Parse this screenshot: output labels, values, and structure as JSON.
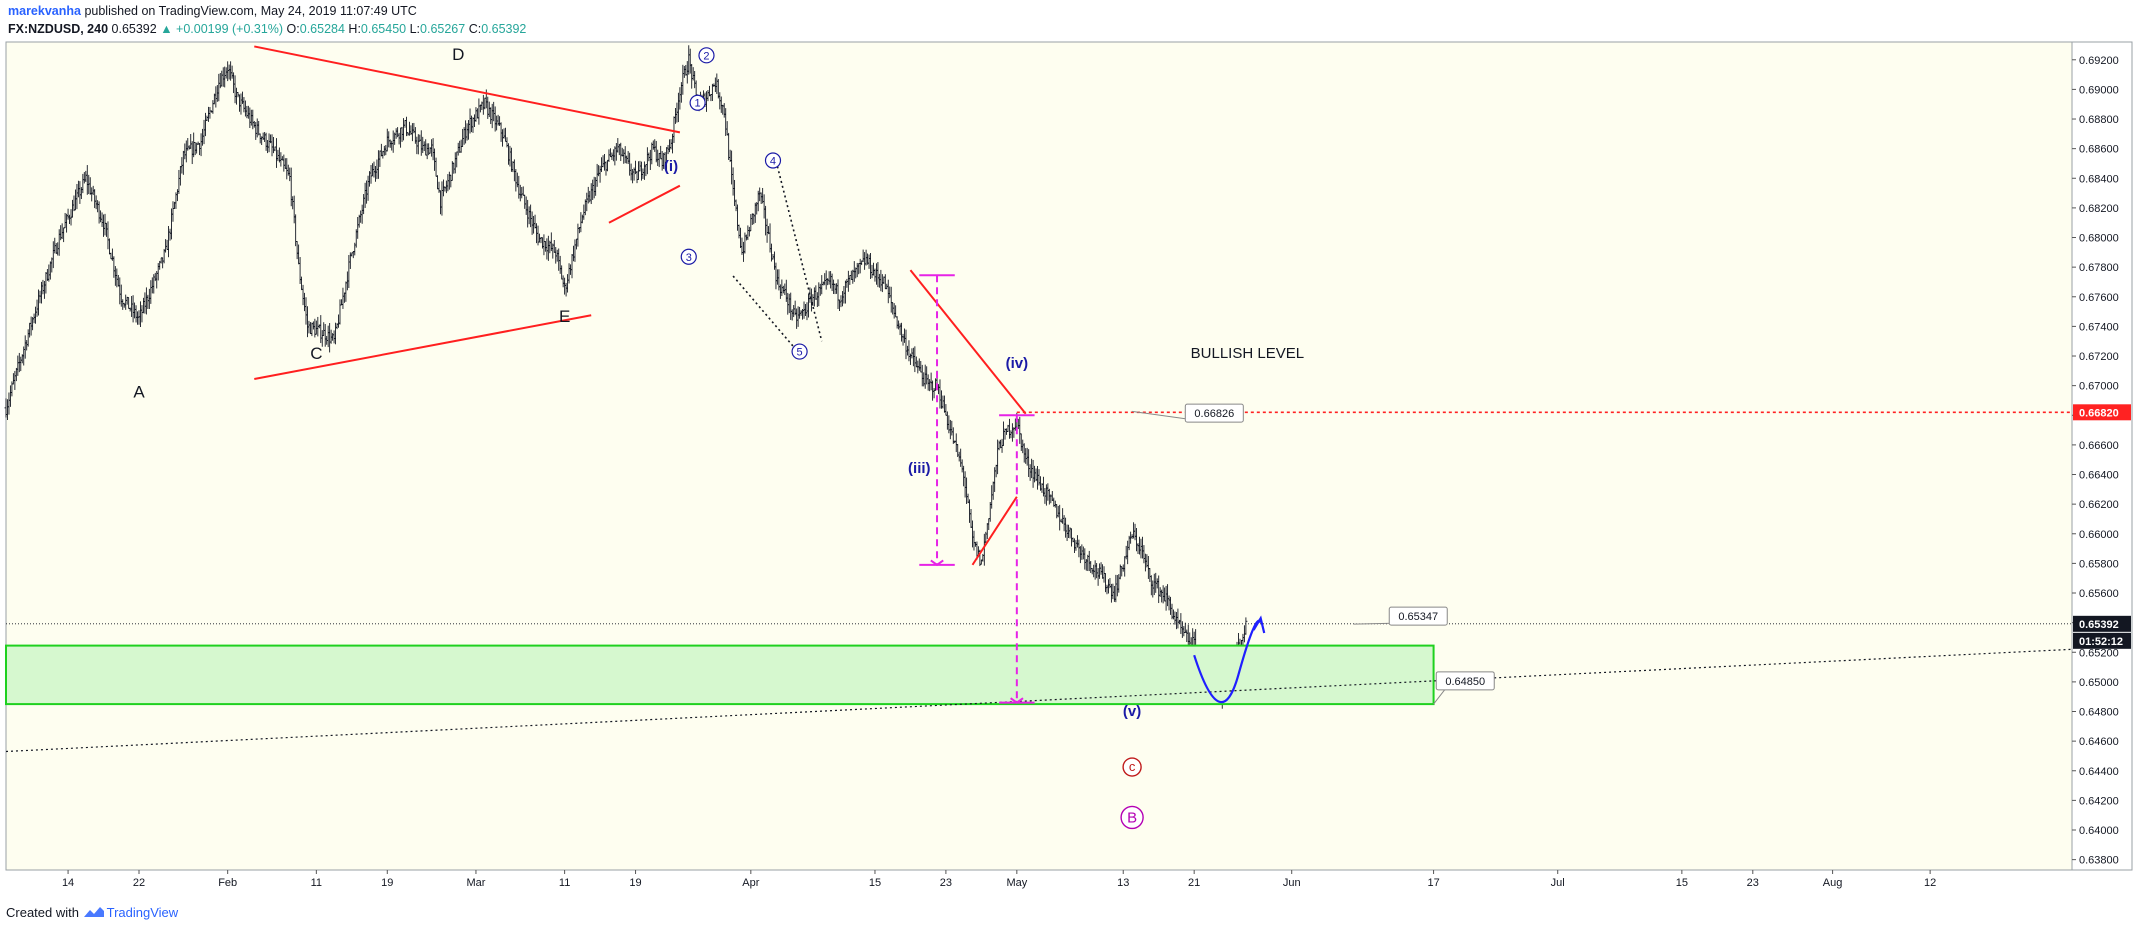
{
  "header": {
    "author": "marekvanha",
    "published_text": "published on TradingView.com, May 24, 2019 11:07:49 UTC",
    "symbol": "FX:NZDUSD, 240",
    "last": "0.65392",
    "change": "▲ +0.00199 (+0.31%)",
    "o_label": "O:",
    "o_value": "0.65284",
    "h_label": "H:",
    "h_value": "0.65450",
    "l_label": "L:",
    "l_value": "0.65267",
    "c_label": "C:",
    "c_value": "0.65392"
  },
  "footer": {
    "created_with": "Created with",
    "brand": "TradingView"
  },
  "colors": {
    "bar": "#131722",
    "trendline": "#ff1f1f",
    "projection": "#e623e6",
    "wave_blue": "#1a1aa6",
    "zone_fill": "#d6f8cf",
    "zone_border": "#1fd11f",
    "bullish_line": "#ff2222",
    "price_badge": "#131722",
    "chart_bg": "#fefef0"
  },
  "chart_data": {
    "type": "ohlc-bars",
    "symbol": "FX:NZDUSD",
    "timeframe": "240",
    "ylim": [
      0.6373,
      0.6932
    ],
    "xlim_days": [
      -7,
      226
    ],
    "y_ticks": [
      "0.69200",
      "0.69000",
      "0.68800",
      "0.68600",
      "0.68400",
      "0.68200",
      "0.68000",
      "0.67800",
      "0.67600",
      "0.67400",
      "0.67200",
      "0.67000",
      "0.66800",
      "0.66600",
      "0.66400",
      "0.66200",
      "0.66000",
      "0.65800",
      "0.65600",
      "0.65400",
      "0.65200",
      "0.65000",
      "0.64800",
      "0.64600",
      "0.64400",
      "0.64200",
      "0.64000",
      "0.63800"
    ],
    "x_ticks": [
      {
        "label": "14",
        "day": 0
      },
      {
        "label": "22",
        "day": 8
      },
      {
        "label": "Feb",
        "day": 18
      },
      {
        "label": "11",
        "day": 28
      },
      {
        "label": "19",
        "day": 36
      },
      {
        "label": "Mar",
        "day": 46
      },
      {
        "label": "11",
        "day": 56
      },
      {
        "label": "19",
        "day": 64
      },
      {
        "label": "Apr",
        "day": 77
      },
      {
        "label": "15",
        "day": 91
      },
      {
        "label": "23",
        "day": 99
      },
      {
        "label": "May",
        "day": 107
      },
      {
        "label": "13",
        "day": 119
      },
      {
        "label": "21",
        "day": 127
      },
      {
        "label": "Jun",
        "day": 138
      },
      {
        "label": "17",
        "day": 154
      },
      {
        "label": "Jul",
        "day": 168
      },
      {
        "label": "15",
        "day": 182
      },
      {
        "label": "23",
        "day": 190
      },
      {
        "label": "Aug",
        "day": 199
      },
      {
        "label": "12",
        "day": 210
      }
    ],
    "price_path": [
      [
        -7,
        0.6685
      ],
      [
        -4,
        0.6745
      ],
      [
        -1,
        0.68
      ],
      [
        2,
        0.684
      ],
      [
        4,
        0.681
      ],
      [
        6,
        0.676
      ],
      [
        8,
        0.6745
      ],
      [
        11,
        0.679
      ],
      [
        13,
        0.6855
      ],
      [
        15,
        0.6865
      ],
      [
        17,
        0.6905
      ],
      [
        18,
        0.6915
      ],
      [
        19,
        0.6895
      ],
      [
        21,
        0.6875
      ],
      [
        23,
        0.686
      ],
      [
        25,
        0.684
      ],
      [
        26,
        0.678
      ],
      [
        27,
        0.674
      ],
      [
        29,
        0.6735
      ],
      [
        30,
        0.673
      ],
      [
        32,
        0.679
      ],
      [
        34,
        0.684
      ],
      [
        36,
        0.6865
      ],
      [
        38,
        0.6875
      ],
      [
        40,
        0.686
      ],
      [
        41,
        0.686
      ],
      [
        42,
        0.6825
      ],
      [
        43,
        0.684
      ],
      [
        45,
        0.6875
      ],
      [
        47,
        0.689
      ],
      [
        49,
        0.687
      ],
      [
        51,
        0.683
      ],
      [
        53,
        0.68
      ],
      [
        55,
        0.679
      ],
      [
        56,
        0.6765
      ],
      [
        57,
        0.679
      ],
      [
        58,
        0.6815
      ],
      [
        60,
        0.6845
      ],
      [
        62,
        0.686
      ],
      [
        64,
        0.684
      ],
      [
        65,
        0.685
      ],
      [
        66,
        0.686
      ],
      [
        67,
        0.685
      ],
      [
        68,
        0.6865
      ],
      [
        69,
        0.69
      ],
      [
        70,
        0.692
      ],
      [
        71,
        0.689
      ],
      [
        72,
        0.6895
      ],
      [
        73,
        0.6905
      ],
      [
        74,
        0.6885
      ],
      [
        75,
        0.683
      ],
      [
        76,
        0.679
      ],
      [
        77,
        0.681
      ],
      [
        78,
        0.683
      ],
      [
        79,
        0.68
      ],
      [
        80,
        0.677
      ],
      [
        81,
        0.676
      ],
      [
        82,
        0.6745
      ],
      [
        83,
        0.675
      ],
      [
        84,
        0.676
      ],
      [
        85,
        0.6765
      ],
      [
        86,
        0.677
      ],
      [
        87,
        0.676
      ],
      [
        88,
        0.677
      ],
      [
        90,
        0.6785
      ],
      [
        91,
        0.6775
      ],
      [
        92,
        0.677
      ],
      [
        94,
        0.6735
      ],
      [
        95,
        0.672
      ],
      [
        97,
        0.67
      ],
      [
        98,
        0.67
      ],
      [
        99,
        0.668
      ],
      [
        101,
        0.664
      ],
      [
        102,
        0.6595
      ],
      [
        103,
        0.658
      ],
      [
        104,
        0.662
      ],
      [
        105,
        0.666
      ],
      [
        106,
        0.667
      ],
      [
        107,
        0.6675
      ],
      [
        108,
        0.665
      ],
      [
        110,
        0.663
      ],
      [
        112,
        0.661
      ],
      [
        114,
        0.659
      ],
      [
        116,
        0.6575
      ],
      [
        118,
        0.656
      ],
      [
        119,
        0.658
      ],
      [
        120,
        0.66
      ],
      [
        121,
        0.659
      ],
      [
        122,
        0.657
      ],
      [
        124,
        0.6555
      ],
      [
        125,
        0.654
      ],
      [
        126,
        0.653
      ],
      [
        127,
        0.6525
      ],
      [
        128,
        0.651
      ],
      [
        129,
        0.6495
      ],
      [
        130,
        0.649
      ],
      [
        131,
        0.65
      ],
      [
        132,
        0.6525
      ],
      [
        133,
        0.6539
      ]
    ],
    "annotations": {
      "labels": [
        {
          "text": "A",
          "day": 8,
          "price": 0.6692
        },
        {
          "text": "C",
          "day": 28,
          "price": 0.6718
        },
        {
          "text": "D",
          "day": 44,
          "price": 0.692
        },
        {
          "text": "E",
          "day": 56,
          "price": 0.6743
        },
        {
          "text": "BULLISH LEVEL",
          "day": 133,
          "price": 0.67185
        }
      ],
      "wave_labels": [
        {
          "text": "(i)",
          "day": 68,
          "price": 0.6845
        },
        {
          "text": "(iii)",
          "day": 96,
          "price": 0.6641
        },
        {
          "text": "(iv)",
          "day": 107,
          "price": 0.6712
        },
        {
          "text": "(v)",
          "day": 120,
          "price": 0.6477
        }
      ],
      "circled_minor": [
        "1",
        "2",
        "3",
        "4",
        "5"
      ],
      "circled_c": "c",
      "circled_B": "B",
      "bullish_level_price": "0.66820",
      "callouts": [
        "0.66826",
        "0.65347",
        "0.64850"
      ],
      "last_price_badge": "0.65392",
      "countdown_badge": "01:52:12"
    }
  }
}
